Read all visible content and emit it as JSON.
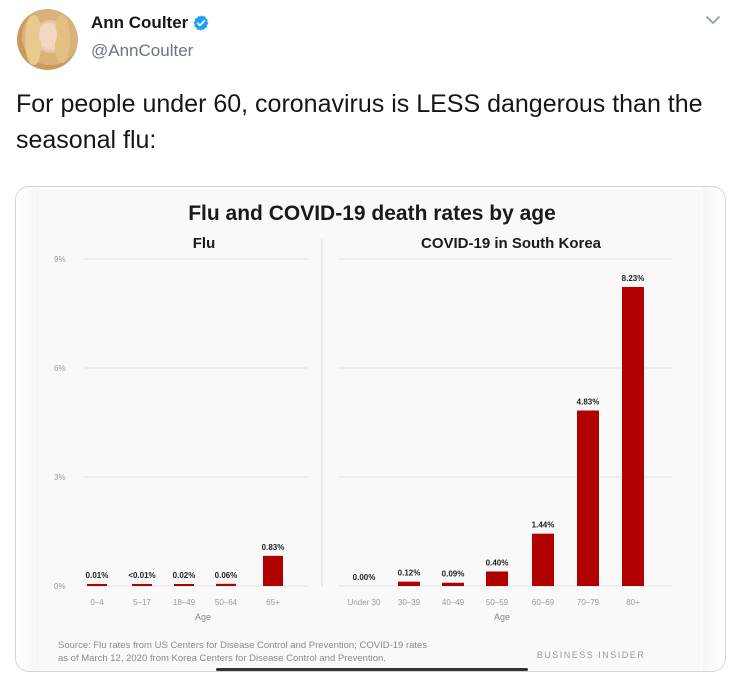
{
  "tweet": {
    "display_name": "Ann Coulter",
    "handle": "@AnnCoulter",
    "text": "For people under 60, coronavirus is LESS dangerous than the seasonal flu:",
    "verified_color": "#1da1f2"
  },
  "chart_data": {
    "type": "bar",
    "title": "Flu and COVID-19 death rates by age",
    "ylim": [
      0,
      9
    ],
    "yticks": [
      "0%",
      "3%",
      "6%",
      "9%"
    ],
    "xlabel": "Age",
    "bar_color": "#b00000",
    "panels": [
      {
        "title": "Flu",
        "categories": [
          "0–4",
          "5–17",
          "18–49",
          "50–64",
          "65+"
        ],
        "values": [
          0.01,
          0.01,
          0.02,
          0.06,
          0.83
        ],
        "labels": [
          "0.01%",
          "<0.01%",
          "0.02%",
          "0.06%",
          "0.83%"
        ]
      },
      {
        "title": "COVID-19 in South Korea",
        "categories": [
          "Under 30",
          "30–39",
          "40–49",
          "50–59",
          "60–69",
          "70–79",
          "80+"
        ],
        "values": [
          0.0,
          0.12,
          0.09,
          0.4,
          1.44,
          4.83,
          8.23
        ],
        "labels": [
          "0.00%",
          "0.12%",
          "0.09%",
          "0.40%",
          "1.44%",
          "4.83%",
          "8.23%"
        ]
      }
    ],
    "source_line1": "Source: Flu rates from US Centers for Disease Control and Prevention; COVID-19 rates",
    "source_line2": "as of March 12, 2020 from Korea Centers for Disease Control and Prevention.",
    "brand": "BUSINESS INSIDER"
  }
}
